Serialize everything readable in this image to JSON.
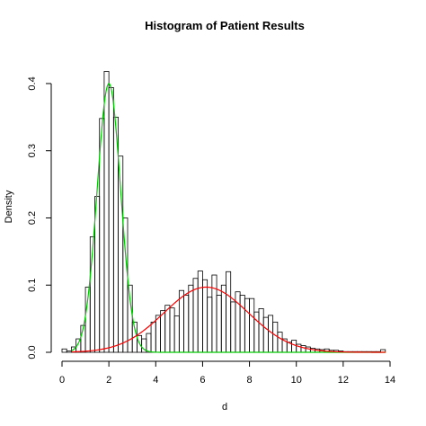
{
  "chart_data": {
    "type": "bar",
    "title": "Histogram of Patient Results",
    "xlabel": "d",
    "ylabel": "Density",
    "xlim": [
      0,
      14
    ],
    "ylim": [
      0,
      0.42
    ],
    "x_ticks": [
      0,
      2,
      4,
      6,
      8,
      10,
      12,
      14
    ],
    "y_ticks": [
      0.0,
      0.1,
      0.2,
      0.3,
      0.4
    ],
    "bin_width": 0.2,
    "bins_start": [
      0,
      0.2,
      0.4,
      0.6,
      0.8,
      1.0,
      1.2,
      1.4,
      1.6,
      1.8,
      2.0,
      2.2,
      2.4,
      2.6,
      2.8,
      3.0,
      3.2,
      3.4,
      3.6,
      3.8,
      4.0,
      4.2,
      4.4,
      4.6,
      4.8,
      5.0,
      5.2,
      5.4,
      5.6,
      5.8,
      6.0,
      6.2,
      6.4,
      6.6,
      6.8,
      7.0,
      7.2,
      7.4,
      7.6,
      7.8,
      8.0,
      8.2,
      8.4,
      8.6,
      8.8,
      9.0,
      9.2,
      9.4,
      9.6,
      9.8,
      10.0,
      10.2,
      10.4,
      10.6,
      10.8,
      11.0,
      11.2,
      11.4,
      11.6,
      11.8,
      12.0,
      12.2,
      12.4,
      12.6,
      12.8,
      13.0,
      13.2,
      13.4,
      13.6
    ],
    "densities": [
      0.005,
      0.002,
      0.008,
      0.02,
      0.04,
      0.097,
      0.172,
      0.232,
      0.348,
      0.418,
      0.394,
      0.35,
      0.292,
      0.2,
      0.1,
      0.045,
      0.025,
      0.02,
      0.028,
      0.045,
      0.055,
      0.062,
      0.07,
      0.066,
      0.054,
      0.092,
      0.085,
      0.1,
      0.11,
      0.121,
      0.108,
      0.082,
      0.115,
      0.085,
      0.1,
      0.12,
      0.075,
      0.09,
      0.085,
      0.08,
      0.08,
      0.06,
      0.065,
      0.052,
      0.055,
      0.045,
      0.03,
      0.02,
      0.015,
      0.018,
      0.012,
      0.01,
      0.008,
      0.006,
      0.005,
      0.004,
      0.005,
      0.003,
      0.003,
      0.002,
      0.001,
      0.001,
      0.001,
      0.001,
      0.001,
      0.001,
      0.001,
      0.001,
      0.004
    ],
    "series": [
      {
        "type": "normal-curve",
        "color": "#00cc00",
        "mean": 2.0,
        "sd": 0.5,
        "peak": 0.4
      },
      {
        "type": "normal-curve",
        "color": "#ff0000",
        "mean": 6.15,
        "sd": 1.8,
        "peak": 0.097
      }
    ]
  }
}
